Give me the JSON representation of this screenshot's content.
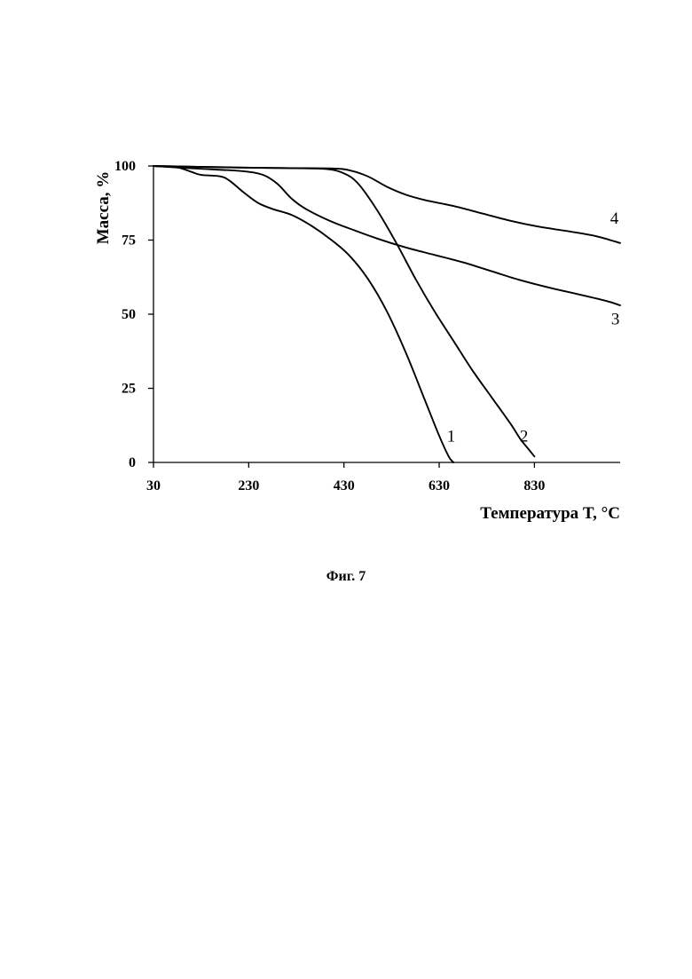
{
  "chart_data": {
    "type": "line",
    "xlabel": "Температура T, °C",
    "ylabel": "Масса, %",
    "xlim": [
      30,
      1010
    ],
    "ylim": [
      0,
      100
    ],
    "x_ticks": [
      "30",
      "230",
      "430",
      "630",
      "830"
    ],
    "y_ticks": [
      "0",
      "25",
      "50",
      "75",
      "100"
    ],
    "grid": false,
    "series": [
      {
        "name": "1",
        "points": [
          [
            30,
            100
          ],
          [
            80,
            99.5
          ],
          [
            110,
            98
          ],
          [
            130,
            97
          ],
          [
            170,
            96.5
          ],
          [
            190,
            95
          ],
          [
            220,
            91
          ],
          [
            250,
            87.5
          ],
          [
            280,
            85.5
          ],
          [
            320,
            83.5
          ],
          [
            360,
            80
          ],
          [
            400,
            75.5
          ],
          [
            440,
            70
          ],
          [
            480,
            62
          ],
          [
            520,
            51
          ],
          [
            560,
            37
          ],
          [
            600,
            21
          ],
          [
            630,
            9
          ],
          [
            650,
            2
          ],
          [
            660,
            0
          ]
        ]
      },
      {
        "name": "2",
        "points": [
          [
            30,
            100
          ],
          [
            200,
            99.5
          ],
          [
            300,
            99.3
          ],
          [
            390,
            99
          ],
          [
            430,
            97.5
          ],
          [
            460,
            94
          ],
          [
            500,
            85
          ],
          [
            540,
            74
          ],
          [
            580,
            62
          ],
          [
            620,
            51
          ],
          [
            660,
            41
          ],
          [
            700,
            31
          ],
          [
            740,
            22
          ],
          [
            780,
            13
          ],
          [
            800,
            8
          ],
          [
            820,
            4
          ],
          [
            830,
            2
          ]
        ]
      },
      {
        "name": "3",
        "points": [
          [
            30,
            100
          ],
          [
            100,
            99.3
          ],
          [
            160,
            98.8
          ],
          [
            220,
            98.2
          ],
          [
            260,
            97
          ],
          [
            290,
            94
          ],
          [
            320,
            89
          ],
          [
            350,
            85.5
          ],
          [
            400,
            81.5
          ],
          [
            440,
            79
          ],
          [
            500,
            75.5
          ],
          [
            560,
            72.5
          ],
          [
            620,
            70
          ],
          [
            680,
            67.5
          ],
          [
            740,
            64.5
          ],
          [
            800,
            61.5
          ],
          [
            860,
            59
          ],
          [
            920,
            56.8
          ],
          [
            980,
            54.5
          ],
          [
            1010,
            53
          ]
        ]
      },
      {
        "name": "4",
        "points": [
          [
            30,
            100
          ],
          [
            200,
            99.5
          ],
          [
            300,
            99.3
          ],
          [
            400,
            99.2
          ],
          [
            440,
            98.6
          ],
          [
            480,
            96.5
          ],
          [
            520,
            93
          ],
          [
            560,
            90.3
          ],
          [
            600,
            88.5
          ],
          [
            660,
            86.5
          ],
          [
            720,
            84
          ],
          [
            780,
            81.5
          ],
          [
            840,
            79.5
          ],
          [
            900,
            78
          ],
          [
            960,
            76.3
          ],
          [
            1010,
            74
          ]
        ]
      }
    ],
    "curve_labels": [
      {
        "text": "1",
        "x": 655,
        "y": 7
      },
      {
        "text": "2",
        "x": 808,
        "y": 7
      },
      {
        "text": "3",
        "x": 1000,
        "y": 46.5
      },
      {
        "text": "4",
        "x": 998,
        "y": 80.5
      }
    ]
  },
  "caption": "Фиг. 7"
}
